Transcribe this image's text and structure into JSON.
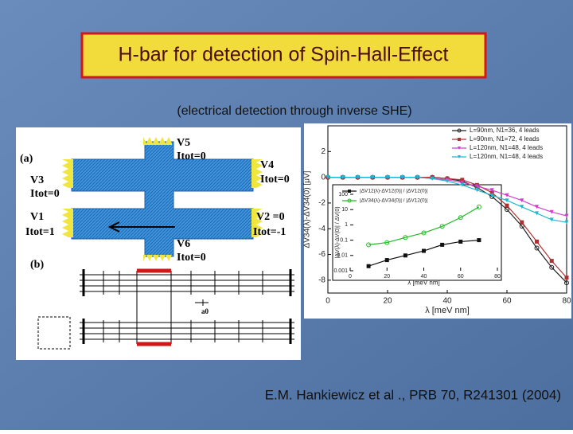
{
  "title": "H-bar for detection of Spin-Hall-Effect",
  "subtitle": "(electrical detection through inverse SHE)",
  "citation": "E.M. Hankiewicz et al ., PRB 70, R241301 (2004)",
  "figure_a": {
    "labels": [
      "(a)",
      "V5",
      "Itot=0",
      "V4",
      "Itot=0",
      "V3",
      "Itot=0",
      "V1",
      "Itot=1",
      "V2 =0",
      "Itot=-1",
      "V6",
      "Itot=0",
      "(b)",
      "a0"
    ]
  },
  "chart_data": [
    {
      "type": "line",
      "xlabel": "λ [meV nm]",
      "ylabel": "ΔV34(λ)-ΔV34(0) [μV]",
      "x": [
        0,
        5,
        10,
        15,
        20,
        25,
        30,
        35,
        40,
        45,
        50,
        55,
        60,
        65,
        70,
        75,
        80
      ],
      "xlim": [
        0,
        80
      ],
      "xticks": [
        0,
        20,
        40,
        60,
        80
      ],
      "ylim": [
        -9,
        4
      ],
      "yticks": [
        2,
        0,
        -2,
        -4,
        -6,
        -8
      ],
      "legend": "upper right",
      "series": [
        {
          "name": "L=90nm, N1=36, 4 leads",
          "color": "#222222",
          "marker": "circle",
          "values": [
            0,
            0,
            0,
            0,
            0,
            0,
            0,
            0,
            -0.1,
            -0.3,
            -0.8,
            -1.5,
            -2.5,
            -3.8,
            -5.5,
            -7,
            -8.2
          ]
        },
        {
          "name": "L=90nm, N1=72, 4 leads",
          "color": "#b03030",
          "marker": "square",
          "values": [
            0,
            0,
            0,
            0,
            0,
            0,
            0,
            0,
            -0.1,
            -0.2,
            -0.6,
            -1.2,
            -2.2,
            -3.5,
            -5,
            -6.5,
            -7.8
          ]
        },
        {
          "name": "L=120nm, N1=48, 4 leads",
          "color": "#d040d0",
          "marker": "triangle",
          "values": [
            0,
            0,
            0,
            0,
            0,
            0,
            0,
            -0.1,
            -0.2,
            -0.4,
            -0.7,
            -1,
            -1.4,
            -1.8,
            -2.3,
            -2.7,
            -3
          ]
        },
        {
          "name": "L=120nm, N1=48, 4 leads",
          "color": "#20b8d0",
          "marker": "triangle",
          "values": [
            0,
            0,
            0,
            0,
            0,
            0,
            0,
            -0.1,
            -0.3,
            -0.6,
            -1,
            -1.4,
            -1.8,
            -2.3,
            -2.8,
            -3.3,
            -3.5
          ]
        }
      ]
    },
    {
      "type": "line",
      "xlabel": "λ [meV nm]",
      "ylabel": "|ΔV(λ)-ΔV(0)| / ΔV(0)",
      "x": [
        10,
        20,
        30,
        40,
        50,
        60,
        70
      ],
      "xlim": [
        0,
        80
      ],
      "xticks": [
        0,
        20,
        40,
        60,
        80
      ],
      "ylim": [
        0.001,
        100
      ],
      "yticks": [
        0.001,
        0.01,
        0.1,
        1,
        10,
        100
      ],
      "log_y": true,
      "series": [
        {
          "name": "|ΔV12(λ)-ΔV12(0)| / |ΔV12(0)|",
          "color": "#111111",
          "marker": "square",
          "values": [
            0.002,
            0.005,
            0.01,
            0.02,
            0.05,
            0.08,
            0.1
          ]
        },
        {
          "name": "|ΔV34(λ)-ΔV34(0)| / |ΔV12(0)|",
          "color": "#22bb22",
          "marker": "circle",
          "values": [
            0.05,
            0.07,
            0.15,
            0.3,
            0.8,
            3,
            15
          ]
        }
      ]
    }
  ]
}
